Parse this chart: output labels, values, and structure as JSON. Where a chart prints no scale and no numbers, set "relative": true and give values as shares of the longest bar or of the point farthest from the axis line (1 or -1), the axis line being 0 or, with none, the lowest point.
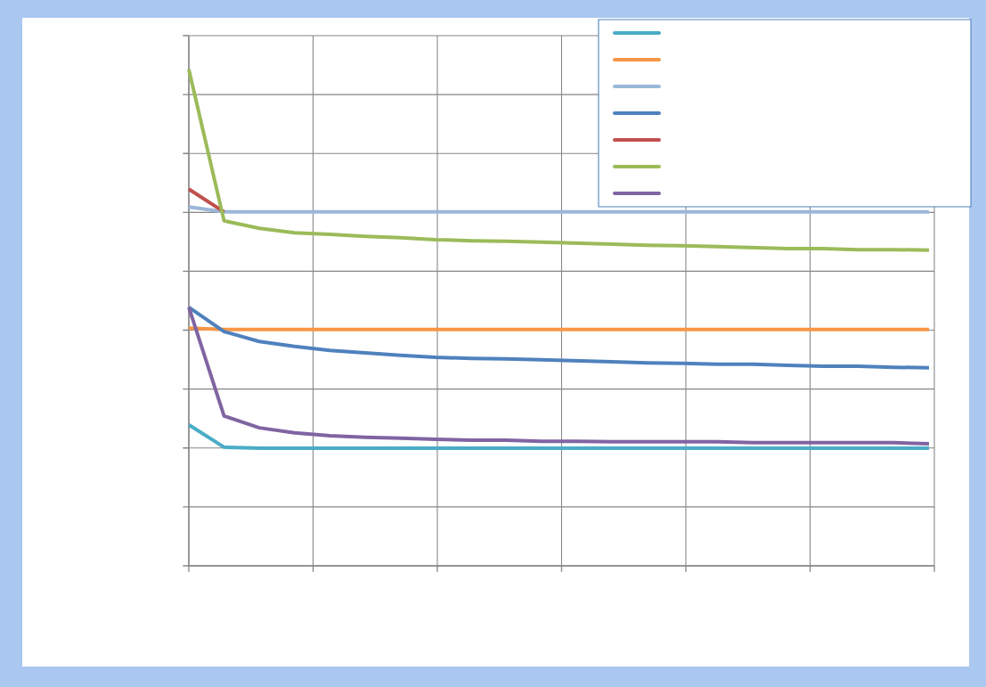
{
  "chart_data": {
    "type": "line",
    "relative": true,
    "grid": true,
    "marker": "none",
    "line_style": "solid",
    "categories": [
      null,
      null,
      null,
      null,
      null,
      null,
      null,
      null,
      null,
      null,
      null,
      null,
      null,
      null,
      null,
      null,
      null,
      null,
      null,
      null,
      null,
      null
    ],
    "series": [
      {
        "color": "#4bacc6",
        "values": [
          0.284,
          0.239,
          0.237,
          0.237,
          0.237,
          0.237,
          0.237,
          0.237,
          0.237,
          0.237,
          0.237,
          0.237,
          0.237,
          0.237,
          0.237,
          0.237,
          0.237,
          0.237,
          0.237,
          0.237,
          0.237,
          0.237
        ]
      },
      {
        "color": "#f79646",
        "values": [
          0.479,
          0.476,
          0.476,
          0.476,
          0.476,
          0.476,
          0.476,
          0.476,
          0.476,
          0.476,
          0.476,
          0.476,
          0.476,
          0.476,
          0.476,
          0.476,
          0.476,
          0.476,
          0.476,
          0.476,
          0.476,
          0.476
        ]
      },
      {
        "color": "#9bb7d9",
        "values": [
          0.723,
          0.713,
          0.713,
          0.713,
          0.713,
          0.713,
          0.713,
          0.713,
          0.713,
          0.713,
          0.713,
          0.713,
          0.713,
          0.713,
          0.713,
          0.713,
          0.713,
          0.713,
          0.713,
          0.713,
          0.713,
          0.713
        ]
      },
      {
        "color": "#4f81bd",
        "values": [
          0.521,
          0.472,
          0.452,
          0.442,
          0.434,
          0.429,
          0.424,
          0.42,
          0.418,
          0.417,
          0.415,
          0.413,
          0.411,
          0.409,
          0.408,
          0.406,
          0.406,
          0.404,
          0.402,
          0.402,
          0.4,
          0.399
        ]
      },
      {
        "color": "#c0504d",
        "values": [
          0.759,
          0.713,
          null,
          null,
          null,
          null,
          null,
          null,
          null,
          null,
          null,
          null,
          null,
          null,
          null,
          null,
          null,
          null,
          null,
          null,
          null,
          null
        ]
      },
      {
        "color": "#9bbb59",
        "values": [
          1.0,
          0.695,
          0.68,
          0.671,
          0.668,
          0.664,
          0.661,
          0.657,
          0.655,
          0.654,
          0.652,
          0.65,
          0.648,
          0.646,
          0.645,
          0.643,
          0.641,
          0.639,
          0.639,
          0.637,
          0.637,
          0.636
        ]
      },
      {
        "color": "#8064a2",
        "values": [
          0.521,
          0.302,
          0.278,
          0.268,
          0.262,
          0.259,
          0.257,
          0.255,
          0.253,
          0.253,
          0.251,
          0.251,
          0.25,
          0.25,
          0.25,
          0.25,
          0.248,
          0.248,
          0.248,
          0.248,
          0.248,
          0.246
        ]
      }
    ]
  }
}
